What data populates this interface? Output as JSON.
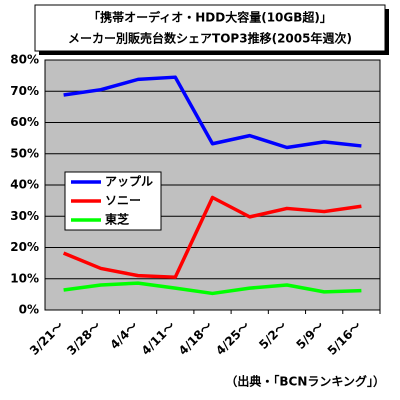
{
  "chart_data": {
    "type": "line",
    "title": "「携帯オーディオ・HDD大容量(10GB超)」",
    "subtitle": "メーカー別販売台数シェアTOP3推移(2005年週次)",
    "categories": [
      "3/21～",
      "3/28～",
      "4/4～",
      "4/11～",
      "4/18～",
      "4/25～",
      "5/2～",
      "5/9～",
      "5/16～"
    ],
    "series": [
      {
        "name": "アップル",
        "color": "#0000ff",
        "values": [
          68.8,
          70.5,
          73.8,
          74.5,
          53.2,
          55.8,
          52,
          53.8,
          52.5
        ]
      },
      {
        "name": "ソニー",
        "color": "#ff0000",
        "values": [
          18.2,
          13.3,
          11,
          10.5,
          36,
          29.8,
          32.5,
          31.5,
          33.2
        ]
      },
      {
        "name": "東芝",
        "color": "#00ff00",
        "values": [
          6.4,
          8,
          8.6,
          7,
          5.3,
          7,
          8,
          5.8,
          6.2
        ]
      }
    ],
    "ylim": [
      0,
      80
    ],
    "yticks": [
      {
        "value": 0,
        "label": "0%"
      },
      {
        "value": 10,
        "label": "10%"
      },
      {
        "value": 20,
        "label": "20%"
      },
      {
        "value": 30,
        "label": "30%"
      },
      {
        "value": 40,
        "label": "40%"
      },
      {
        "value": 50,
        "label": "50%"
      },
      {
        "value": 60,
        "label": "60%"
      },
      {
        "value": 70,
        "label": "70%"
      },
      {
        "value": 80,
        "label": "80%"
      }
    ],
    "grid": true,
    "legend": "left",
    "annotation": "（出典・「BCNランキング」）"
  }
}
